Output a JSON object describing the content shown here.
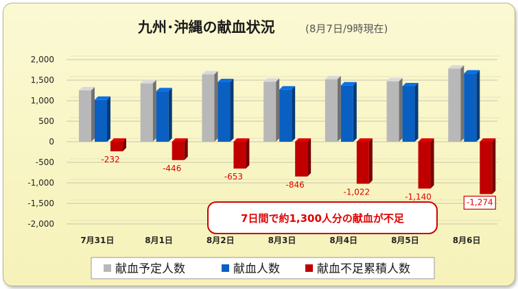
{
  "chart_data": {
    "type": "bar",
    "title": "九州･沖縄の献血状況",
    "subtitle": "(8月7日/9時現在)",
    "categories": [
      "7月31日",
      "8月1日",
      "8月2日",
      "8月3日",
      "8月4日",
      "8月5日",
      "8月6日"
    ],
    "series": [
      {
        "name": "献血予定人数",
        "color": "#b8b8b8",
        "values": [
          1250,
          1420,
          1640,
          1460,
          1520,
          1470,
          1780
        ]
      },
      {
        "name": "献血人数",
        "color": "#0a5fc2",
        "values": [
          1020,
          1230,
          1450,
          1270,
          1370,
          1350,
          1660
        ]
      },
      {
        "name": "献血不足累積人数",
        "color": "#c00000",
        "values": [
          -232,
          -446,
          -653,
          -846,
          -1022,
          -1140,
          -1274
        ]
      }
    ],
    "data_labels": [
      "-232",
      "-446",
      "-653",
      "-846",
      "-1,022",
      "-1,140",
      "-1,274"
    ],
    "y_ticks": [
      "2,000",
      "1,500",
      "1,000",
      "500",
      "0",
      "-500",
      "-1,000",
      "-1,500",
      "-2,000"
    ],
    "ylim": [
      -2000,
      2000
    ],
    "grid": true,
    "legend_position": "bottom",
    "callout": "7日間で約1,300人分の献血が不足",
    "highlighted_label": "-1,274"
  }
}
